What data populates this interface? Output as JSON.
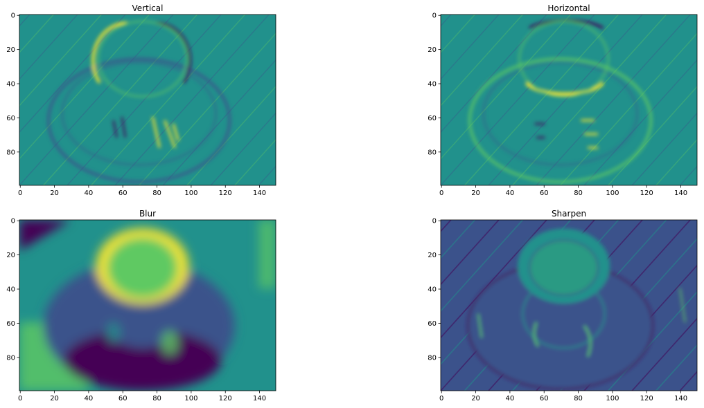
{
  "figure": {
    "image_width": 150,
    "image_height": 100,
    "x_ticks": [
      0,
      20,
      40,
      60,
      80,
      100,
      120,
      140
    ],
    "y_ticks": [
      0,
      20,
      40,
      60,
      80
    ],
    "panels": [
      {
        "id": "vertical",
        "title": "Vertical",
        "filter": "vertical-edge"
      },
      {
        "id": "horizontal",
        "title": "Horizontal",
        "filter": "horizontal-edge"
      },
      {
        "id": "blur",
        "title": "Blur",
        "filter": "blur"
      },
      {
        "id": "sharpen",
        "title": "Sharpen",
        "filter": "sharpen"
      }
    ],
    "colormap": [
      "#440154",
      "#3b528b",
      "#21918c",
      "#5ec962",
      "#fde725"
    ]
  }
}
